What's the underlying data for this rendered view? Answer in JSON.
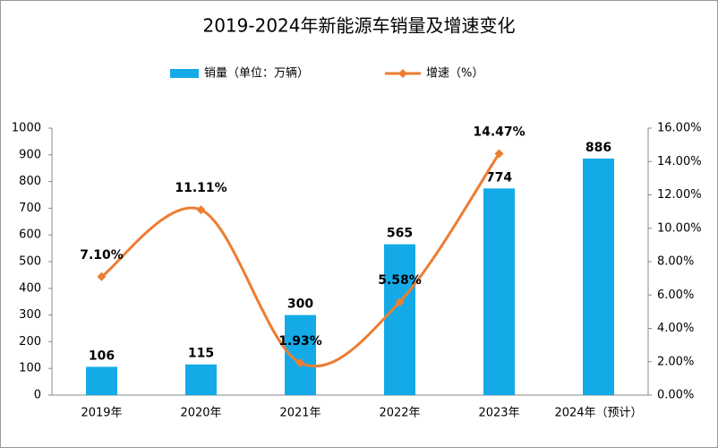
{
  "chart_data": {
    "type": "bar",
    "title": "2019-2024年新能源车销量及增速变化",
    "categories": [
      "2019年",
      "2020年",
      "2021年",
      "2022年",
      "2023年",
      "2024年（预计）"
    ],
    "series": [
      {
        "name": "销量（单位：万辆）",
        "type": "bar",
        "color": "#14aae8",
        "values": [
          106,
          115,
          300,
          565,
          774,
          886
        ]
      },
      {
        "name": "增速（%）",
        "type": "line",
        "axis": "y2",
        "color": "#ed7d31",
        "values": [
          7.1,
          11.11,
          1.93,
          5.58,
          14.47,
          null
        ],
        "value_labels": [
          "7.10%",
          "11.11%",
          "1.93%",
          "5.58%",
          "14.47%",
          null
        ]
      }
    ],
    "ylim": [
      0,
      1000
    ],
    "yticks": [
      0,
      100,
      200,
      300,
      400,
      500,
      600,
      700,
      800,
      900,
      1000
    ],
    "y2lim": [
      0,
      16
    ],
    "y2ticks": [
      {
        "value": 0,
        "label": "0.00%"
      },
      {
        "value": 2,
        "label": "2.00%"
      },
      {
        "value": 4,
        "label": "4.00%"
      },
      {
        "value": 6,
        "label": "6.00%"
      },
      {
        "value": 8,
        "label": "8.00%"
      },
      {
        "value": 10,
        "label": "10.00%"
      },
      {
        "value": 12,
        "label": "12.00%"
      },
      {
        "value": 14,
        "label": "14.00%"
      },
      {
        "value": 16,
        "label": "16.00%"
      }
    ],
    "grid": false,
    "legend": "top"
  }
}
